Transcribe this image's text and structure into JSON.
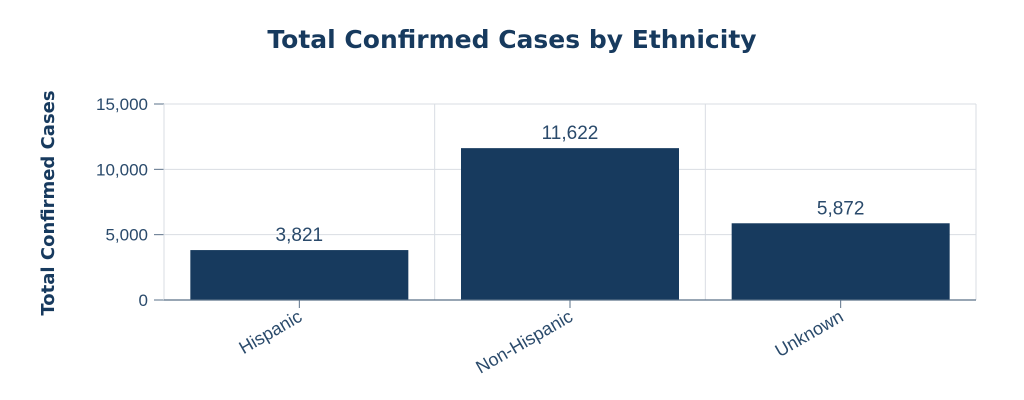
{
  "chart_data": {
    "type": "bar",
    "title": "Total Confirmed Cases by Ethnicity",
    "xlabel": "",
    "ylabel": "Total Confirmed Cases",
    "categories": [
      "Hispanic",
      "Non-Hispanic",
      "Unknown"
    ],
    "values": [
      3821,
      11622,
      5872
    ],
    "data_labels": [
      "3,821",
      "11,622",
      "5,872"
    ],
    "y_ticks": [
      0,
      5000,
      10000,
      15000
    ],
    "y_tick_labels": [
      "0",
      "5,000",
      "10,000",
      "15,000"
    ],
    "ylim": [
      0,
      15000
    ],
    "grid": true,
    "legend": "none",
    "colors": {
      "bar": "#173a5e",
      "title": "#173a5e",
      "text": "#2a4a6b",
      "grid": "#d9dde3",
      "axis": "#5a7088"
    }
  }
}
